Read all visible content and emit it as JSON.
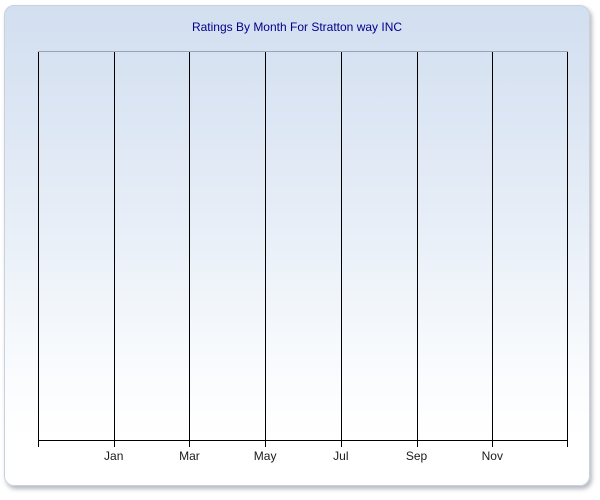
{
  "page": {
    "background": "#ffffff"
  },
  "panel": {
    "background_top": "#d2dff0",
    "background_bottom": "#ffffff",
    "border_color": "#c9d1de",
    "title_color": "#00008b"
  },
  "chart_data": {
    "type": "line",
    "title": "Ratings By Month For Stratton way INC",
    "xlabel": "",
    "ylabel": "",
    "x_tick_labels": [
      "Jan",
      "Mar",
      "May",
      "Jul",
      "Sep",
      "Nov"
    ],
    "x_gridlines": 8,
    "x_label_gridline_indices": [
      1,
      2,
      3,
      4,
      5,
      6
    ],
    "y_tick_labels": [],
    "series": [],
    "grid": "vertical-only",
    "legend": "none",
    "gridline_color": "#000000",
    "axis_color": "#000000",
    "plot_top_border_color": "#9aa3b4"
  }
}
